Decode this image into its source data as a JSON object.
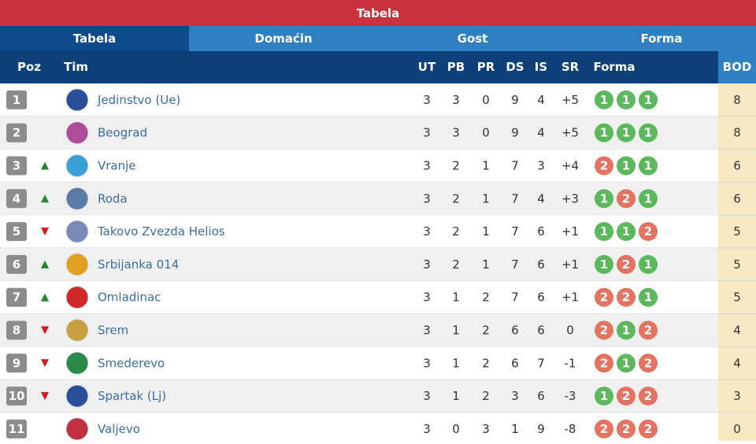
{
  "header": {
    "title": "Tabela"
  },
  "tabs": [
    "Tabela",
    "Domaćin",
    "Gost",
    "Forma"
  ],
  "columns": [
    "Poz",
    "Tim",
    "UT",
    "PB",
    "PR",
    "DS",
    "IS",
    "SR",
    "Forma",
    "BOD"
  ],
  "rows": [
    {
      "pos": 1,
      "team": "Jedinstvo (Ue)",
      "ut": 3,
      "pb": 3,
      "pr": 0,
      "ds": 9,
      "is": 4,
      "sr": "+5",
      "form": [
        1,
        1,
        1
      ],
      "bod": 8
    },
    {
      "pos": 2,
      "team": "Beograd",
      "ut": 3,
      "pb": 3,
      "pr": 0,
      "ds": 9,
      "is": 4,
      "sr": "+5",
      "form": [
        1,
        1,
        1
      ],
      "bod": 8
    },
    {
      "pos": 3,
      "team": "Vranje",
      "ut": 3,
      "pb": 2,
      "pr": 1,
      "ds": 7,
      "is": 3,
      "sr": "+4",
      "form": [
        2,
        1,
        1
      ],
      "bod": 6
    },
    {
      "pos": 4,
      "team": "Roda",
      "ut": 3,
      "pb": 2,
      "pr": 1,
      "ds": 7,
      "is": 4,
      "sr": "+3",
      "form": [
        1,
        2,
        1
      ],
      "bod": 6
    },
    {
      "pos": 5,
      "team": "Takovo Zvezda Helios",
      "ut": 3,
      "pb": 2,
      "pr": 1,
      "ds": 7,
      "is": 6,
      "sr": "+1",
      "form": [
        1,
        1,
        2
      ],
      "bod": 5
    },
    {
      "pos": 6,
      "team": "Srbijanka 014",
      "ut": 3,
      "pb": 2,
      "pr": 1,
      "ds": 7,
      "is": 6,
      "sr": "+1",
      "form": [
        1,
        2,
        1
      ],
      "bod": 5
    },
    {
      "pos": 7,
      "team": "Omladinac",
      "ut": 3,
      "pb": 1,
      "pr": 2,
      "ds": 7,
      "is": 6,
      "sr": "+1",
      "form": [
        2,
        2,
        1
      ],
      "bod": 5
    },
    {
      "pos": 8,
      "team": "Srem",
      "ut": 3,
      "pb": 1,
      "pr": 2,
      "ds": 6,
      "is": 6,
      "sr": "0",
      "form": [
        2,
        1,
        2
      ],
      "bod": 4
    },
    {
      "pos": 9,
      "team": "Smederevo",
      "ut": 3,
      "pb": 1,
      "pr": 2,
      "ds": 6,
      "is": 7,
      "sr": "-1",
      "form": [
        2,
        1,
        2
      ],
      "bod": 4
    },
    {
      "pos": 10,
      "team": "Spartak (Lj)",
      "ut": 3,
      "pb": 1,
      "pr": 2,
      "ds": 3,
      "is": 6,
      "sr": "-3",
      "form": [
        1,
        2,
        2
      ],
      "bod": 3
    },
    {
      "pos": 11,
      "team": "Valjevo",
      "ut": 3,
      "pb": 0,
      "pr": 3,
      "ds": 1,
      "is": 9,
      "sr": "-8",
      "form": [
        2,
        2,
        2
      ],
      "bod": 0
    }
  ]
}
